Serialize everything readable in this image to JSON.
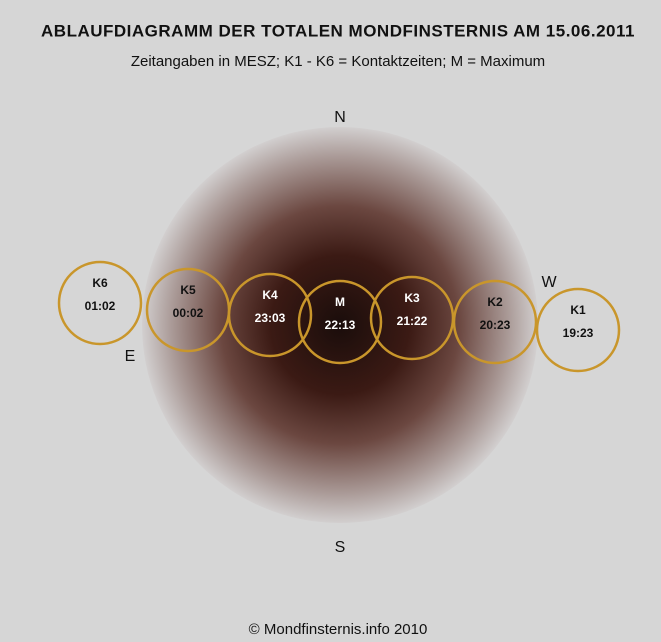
{
  "header": {
    "title": "ABLAUFDIAGRAMM DER TOTALEN MONDFINSTERNIS AM 15.06.2011",
    "subtitle": "Zeitangaben in MESZ; K1 - K6 = Kontaktzeiten; M = Maximum"
  },
  "directions": {
    "north": "N",
    "south": "S",
    "east": "E",
    "west": "W"
  },
  "contacts": [
    {
      "label": "K6",
      "time": "01:02"
    },
    {
      "label": "K5",
      "time": "00:02"
    },
    {
      "label": "K4",
      "time": "23:03"
    },
    {
      "label": "M",
      "time": "22:13"
    },
    {
      "label": "K3",
      "time": "21:22"
    },
    {
      "label": "K2",
      "time": "20:23"
    },
    {
      "label": "K1",
      "time": "19:23"
    }
  ],
  "footer": {
    "copyright": "© Mondfinsternis.info 2010"
  }
}
